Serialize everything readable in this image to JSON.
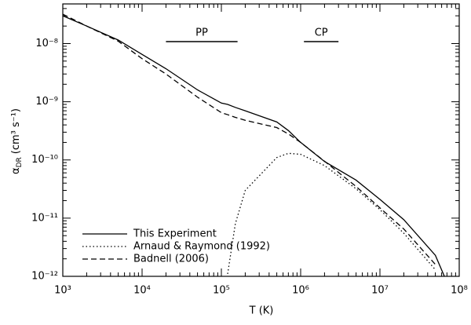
{
  "chart_data": {
    "type": "line",
    "xlabel": "T (K)",
    "ylabel": {
      "symbol": "α",
      "subscript": "DR",
      "unit": "(cm³ s⁻¹)"
    },
    "log_x": true,
    "log_y": true,
    "legend": "lower left",
    "xlim": [
      1000,
      100000000
    ],
    "ylim": [
      1e-12,
      4.8e-08
    ],
    "xticks": [
      {
        "value": 1000,
        "label": "10³"
      },
      {
        "value": 10000,
        "label": "10⁴"
      },
      {
        "value": 100000,
        "label": "10⁵"
      },
      {
        "value": 1000000,
        "label": "10⁶"
      },
      {
        "value": 10000000,
        "label": "10⁷"
      },
      {
        "value": 100000000,
        "label": "10⁸"
      }
    ],
    "yticks": [
      {
        "value": 1e-12,
        "label": "10⁻¹²"
      },
      {
        "value": 1e-11,
        "label": "10⁻¹¹"
      },
      {
        "value": 1e-10,
        "label": "10⁻¹⁰"
      },
      {
        "value": 1e-09,
        "label": "10⁻⁹"
      },
      {
        "value": 1e-08,
        "label": "10⁻⁸"
      }
    ],
    "annotations": [
      {
        "text": "PP",
        "range": [
          20000,
          160000
        ]
      },
      {
        "text": "CP",
        "range": [
          1100000,
          3000000
        ]
      }
    ],
    "x": [
      1000,
      2000,
      5000,
      10000,
      20000,
      50000,
      100000,
      120000,
      150000,
      200000,
      500000,
      700000,
      1000000,
      2000000,
      5000000,
      10000000,
      20000000,
      50000000,
      65000000
    ],
    "series": [
      {
        "name": "This Experiment",
        "color": "#000000",
        "dash": "solid",
        "values": [
          3e-08,
          2e-08,
          1.15e-08,
          6.5e-09,
          3.7e-09,
          1.6e-09,
          9.5e-10,
          9e-10,
          8e-10,
          7e-10,
          4.5e-10,
          3.2e-10,
          2e-10,
          9.4e-11,
          4.5e-11,
          2.1e-11,
          9.4e-12,
          2.3e-12,
          1e-12
        ]
      },
      {
        "name": "Arnaud & Raymond (1992)",
        "color": "#000000",
        "dash": "dotted",
        "values": [
          null,
          null,
          null,
          null,
          null,
          null,
          null,
          1.1e-12,
          8e-12,
          3e-11,
          1.1e-10,
          1.3e-10,
          1.25e-10,
          8e-11,
          3.2e-11,
          1.4e-11,
          5.5e-12,
          1.3e-12,
          null
        ]
      },
      {
        "name": "Badnell (2006)",
        "color": "#000000",
        "dash": "dashed",
        "values": [
          3.2e-08,
          2e-08,
          1.1e-08,
          5.5e-09,
          3e-09,
          1.2e-09,
          6.5e-10,
          6e-10,
          5.4e-10,
          4.8e-10,
          3.6e-10,
          2.8e-10,
          2e-10,
          9.5e-11,
          3.5e-11,
          1.5e-11,
          6.5e-12,
          1.6e-12,
          null
        ]
      }
    ]
  }
}
